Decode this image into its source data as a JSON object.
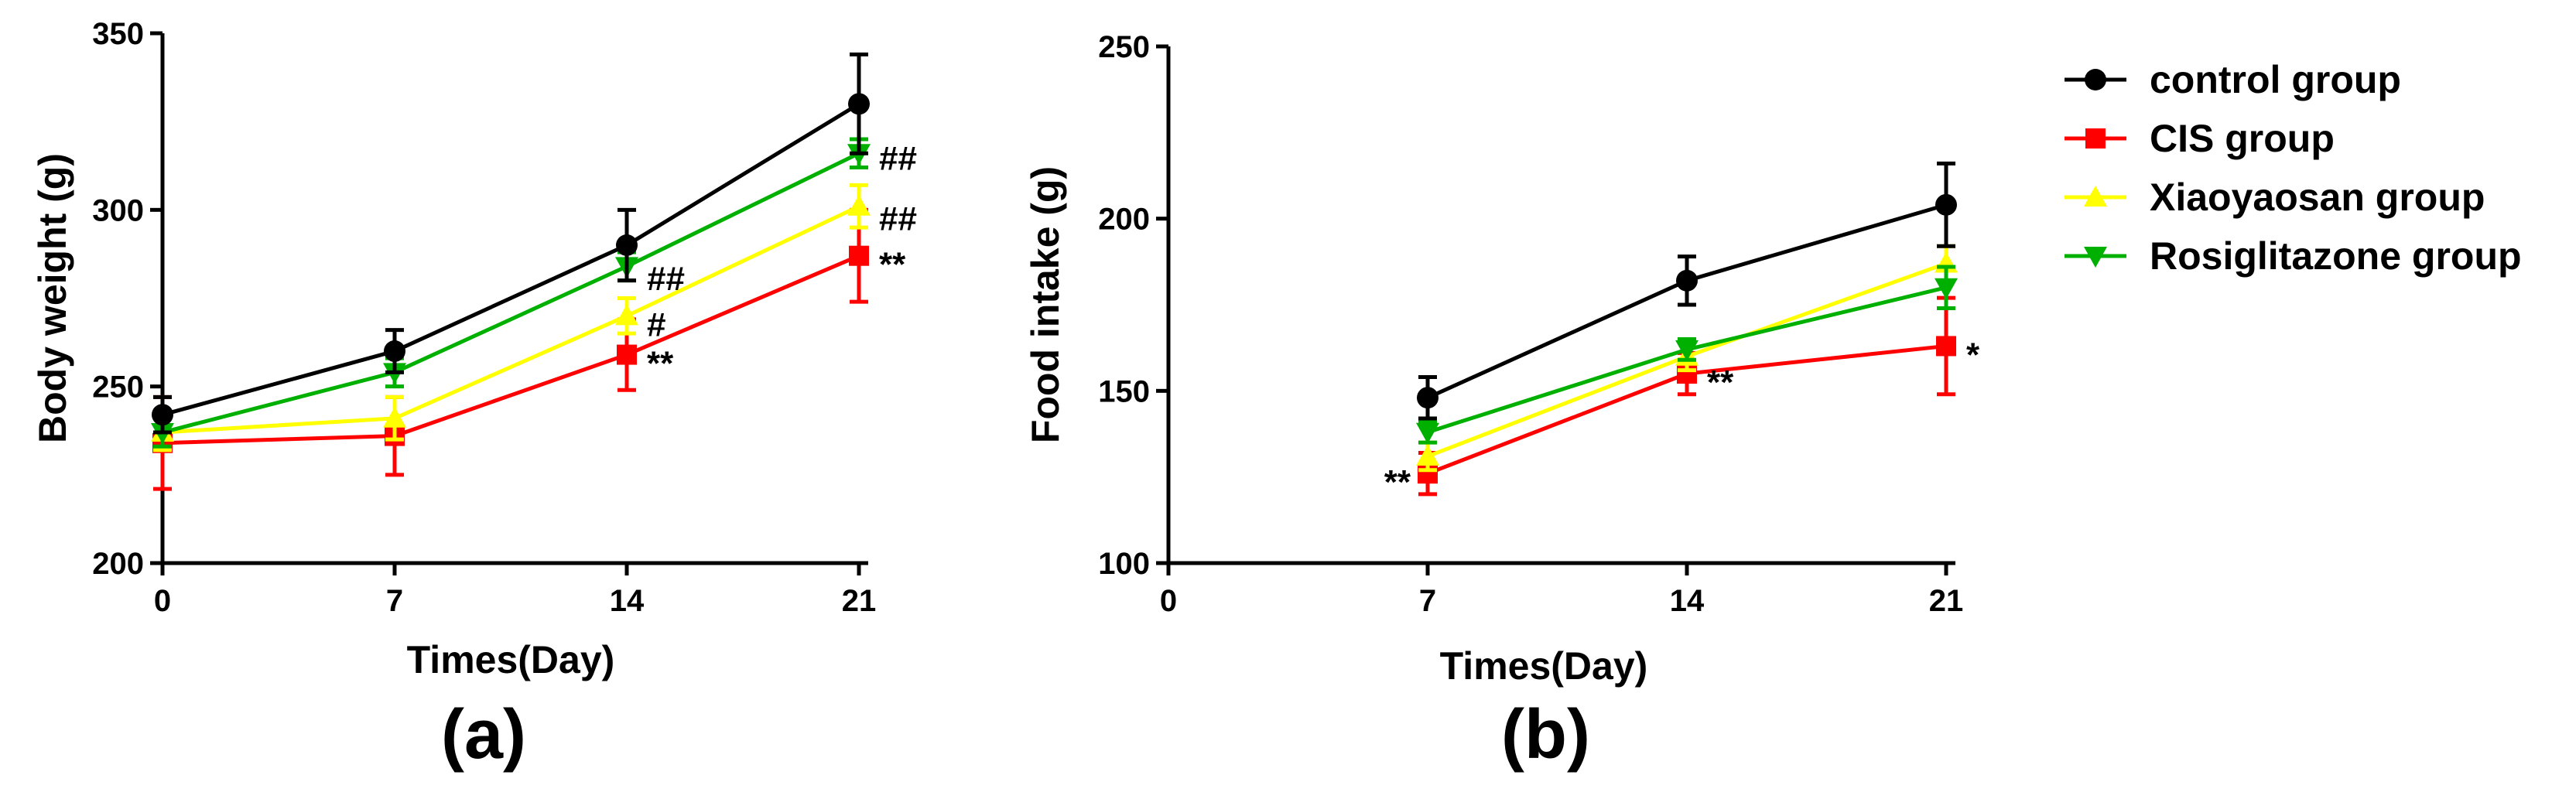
{
  "chart_data": [
    {
      "panel_label": "(a)",
      "type": "line",
      "xlabel": "Times(Day)",
      "ylabel": "Body weight (g)",
      "xlim": [
        0,
        21
      ],
      "ylim": [
        200,
        350
      ],
      "xticks": [
        0,
        7,
        14,
        21
      ],
      "yticks": [
        200,
        250,
        300,
        350
      ],
      "x": [
        0,
        7,
        14,
        21
      ],
      "series": [
        {
          "name": "CIS group",
          "color": "#ff0000",
          "marker": "square",
          "values": [
            234,
            236,
            259,
            287
          ],
          "errors": [
            13,
            11,
            10,
            13
          ]
        },
        {
          "name": "Xiaoyaosan group",
          "color": "#ffff00",
          "marker": "triangle-up",
          "values": [
            237,
            241,
            270,
            301
          ],
          "errors": [
            5,
            6,
            5,
            6
          ]
        },
        {
          "name": "Rosiglitazone group",
          "color": "#00b000",
          "marker": "triangle-down",
          "values": [
            237,
            254,
            284,
            316
          ],
          "errors": [
            4,
            4,
            4,
            4
          ]
        },
        {
          "name": "control group",
          "color": "#000000",
          "marker": "circle",
          "values": [
            242,
            260,
            290,
            330
          ],
          "errors": [
            5,
            6,
            10,
            14
          ]
        }
      ],
      "annotations": [
        {
          "text": "##",
          "x": 14,
          "y": 283
        },
        {
          "text": "#",
          "x": 14,
          "y": 270
        },
        {
          "text": "**",
          "x": 14,
          "y": 259
        },
        {
          "text": "##",
          "x": 21,
          "y": 317
        },
        {
          "text": "##",
          "x": 21,
          "y": 300
        },
        {
          "text": "**",
          "x": 21,
          "y": 287
        }
      ]
    },
    {
      "panel_label": "(b)",
      "type": "line",
      "xlabel": "Times(Day)",
      "ylabel": "Food intake (g)",
      "xlim": [
        0,
        21
      ],
      "ylim": [
        100,
        250
      ],
      "xticks": [
        0,
        7,
        14,
        21
      ],
      "yticks": [
        100,
        150,
        200,
        250
      ],
      "x": [
        7,
        14,
        21
      ],
      "series": [
        {
          "name": "CIS group",
          "color": "#ff0000",
          "marker": "square",
          "values": [
            126,
            155,
            163
          ],
          "errors": [
            6,
            6,
            14
          ]
        },
        {
          "name": "Xiaoyaosan group",
          "color": "#ffff00",
          "marker": "triangle-up",
          "values": [
            131,
            160,
            187
          ],
          "errors": [
            4,
            4,
            5
          ]
        },
        {
          "name": "Rosiglitazone group",
          "color": "#00b000",
          "marker": "triangle-down",
          "values": [
            138,
            162,
            180
          ],
          "errors": [
            3,
            3,
            6
          ]
        },
        {
          "name": "control group",
          "color": "#000000",
          "marker": "circle",
          "values": [
            148,
            182,
            204
          ],
          "errors": [
            6,
            7,
            12
          ]
        }
      ],
      "annotations": [
        {
          "text": "**",
          "x": 7,
          "y": 126
        },
        {
          "text": "**",
          "x": 14,
          "y": 155
        },
        {
          "text": "*",
          "x": 21,
          "y": 163
        }
      ]
    }
  ],
  "legend": [
    {
      "name": "control group",
      "color": "#000000",
      "marker": "circle"
    },
    {
      "name": "CIS group",
      "color": "#ff0000",
      "marker": "square"
    },
    {
      "name": "Xiaoyaosan group",
      "color": "#ffff00",
      "marker": "triangle-up"
    },
    {
      "name": "Rosiglitazone group",
      "color": "#00b000",
      "marker": "triangle-down"
    }
  ]
}
